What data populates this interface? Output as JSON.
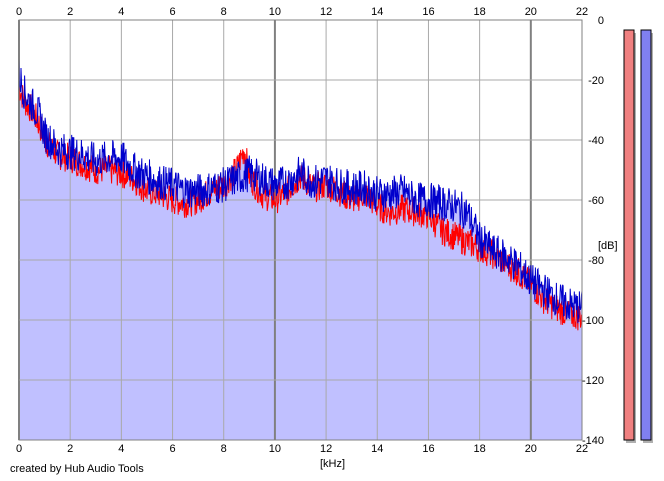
{
  "chart_data": {
    "type": "line",
    "xlabel": "[kHz]",
    "ylabel": "[dB]",
    "xlim": [
      0,
      22
    ],
    "ylim": [
      -140,
      0
    ],
    "x_ticks": [
      0,
      2,
      4,
      6,
      8,
      10,
      12,
      14,
      16,
      18,
      20,
      22
    ],
    "y_ticks": [
      0,
      -20,
      -40,
      -60,
      -80,
      -100,
      -120,
      -140
    ],
    "grid": true,
    "series": [
      {
        "color": "#ff0000",
        "x": [
          0,
          0.2,
          0.5,
          0.8,
          1.0,
          1.5,
          2.0,
          2.5,
          3.0,
          3.5,
          4.0,
          4.5,
          5.0,
          5.5,
          6.0,
          6.5,
          7.0,
          7.5,
          8.0,
          8.5,
          8.8,
          9.0,
          9.5,
          10.0,
          10.5,
          11.0,
          11.5,
          12.0,
          12.5,
          13.0,
          13.5,
          14.0,
          14.5,
          15.0,
          15.5,
          16.0,
          16.5,
          17.0,
          17.5,
          18.0,
          18.5,
          19.0,
          19.5,
          20.0,
          20.5,
          21.0,
          21.5,
          22.0
        ],
        "values": [
          -22,
          -27,
          -30,
          -35,
          -40,
          -45,
          -46,
          -48,
          -50,
          -50,
          -51,
          -53,
          -57,
          -58,
          -60,
          -61,
          -60,
          -57,
          -55,
          -50,
          -43,
          -52,
          -58,
          -60,
          -57,
          -52,
          -56,
          -55,
          -57,
          -60,
          -58,
          -62,
          -64,
          -63,
          -64,
          -65,
          -70,
          -72,
          -74,
          -76,
          -78,
          -81,
          -84,
          -88,
          -93,
          -96,
          -98,
          -99
        ]
      },
      {
        "color": "#0000cc",
        "x": [
          0,
          0.2,
          0.5,
          0.8,
          1.0,
          1.5,
          2.0,
          2.5,
          3.0,
          3.5,
          4.0,
          4.5,
          5.0,
          5.5,
          6.0,
          6.5,
          7.0,
          7.5,
          8.0,
          8.5,
          8.8,
          9.0,
          9.5,
          10.0,
          10.5,
          11.0,
          11.5,
          12.0,
          12.5,
          13.0,
          13.5,
          14.0,
          14.5,
          15.0,
          15.5,
          16.0,
          16.5,
          17.0,
          17.5,
          18.0,
          18.5,
          19.0,
          19.5,
          20.0,
          20.5,
          21.0,
          21.5,
          22.0
        ],
        "values": [
          -18,
          -24,
          -28,
          -32,
          -38,
          -43,
          -44,
          -45,
          -47,
          -46,
          -46,
          -50,
          -52,
          -54,
          -55,
          -57,
          -57,
          -56,
          -55,
          -53,
          -52,
          -51,
          -53,
          -55,
          -54,
          -51,
          -54,
          -53,
          -55,
          -56,
          -56,
          -58,
          -58,
          -57,
          -60,
          -60,
          -61,
          -62,
          -64,
          -73,
          -77,
          -79,
          -82,
          -87,
          -90,
          -93,
          -95,
          -96
        ]
      }
    ]
  },
  "credit": "created by Hub Audio Tools",
  "meters": {
    "left": {
      "color": "#f08080",
      "level": 1.0
    },
    "right": {
      "color": "#8080f0",
      "level": 1.0
    }
  },
  "colors": {
    "fill": "#c0c0ff",
    "grid": "#a9a9a9",
    "grid_major": "#808080"
  }
}
